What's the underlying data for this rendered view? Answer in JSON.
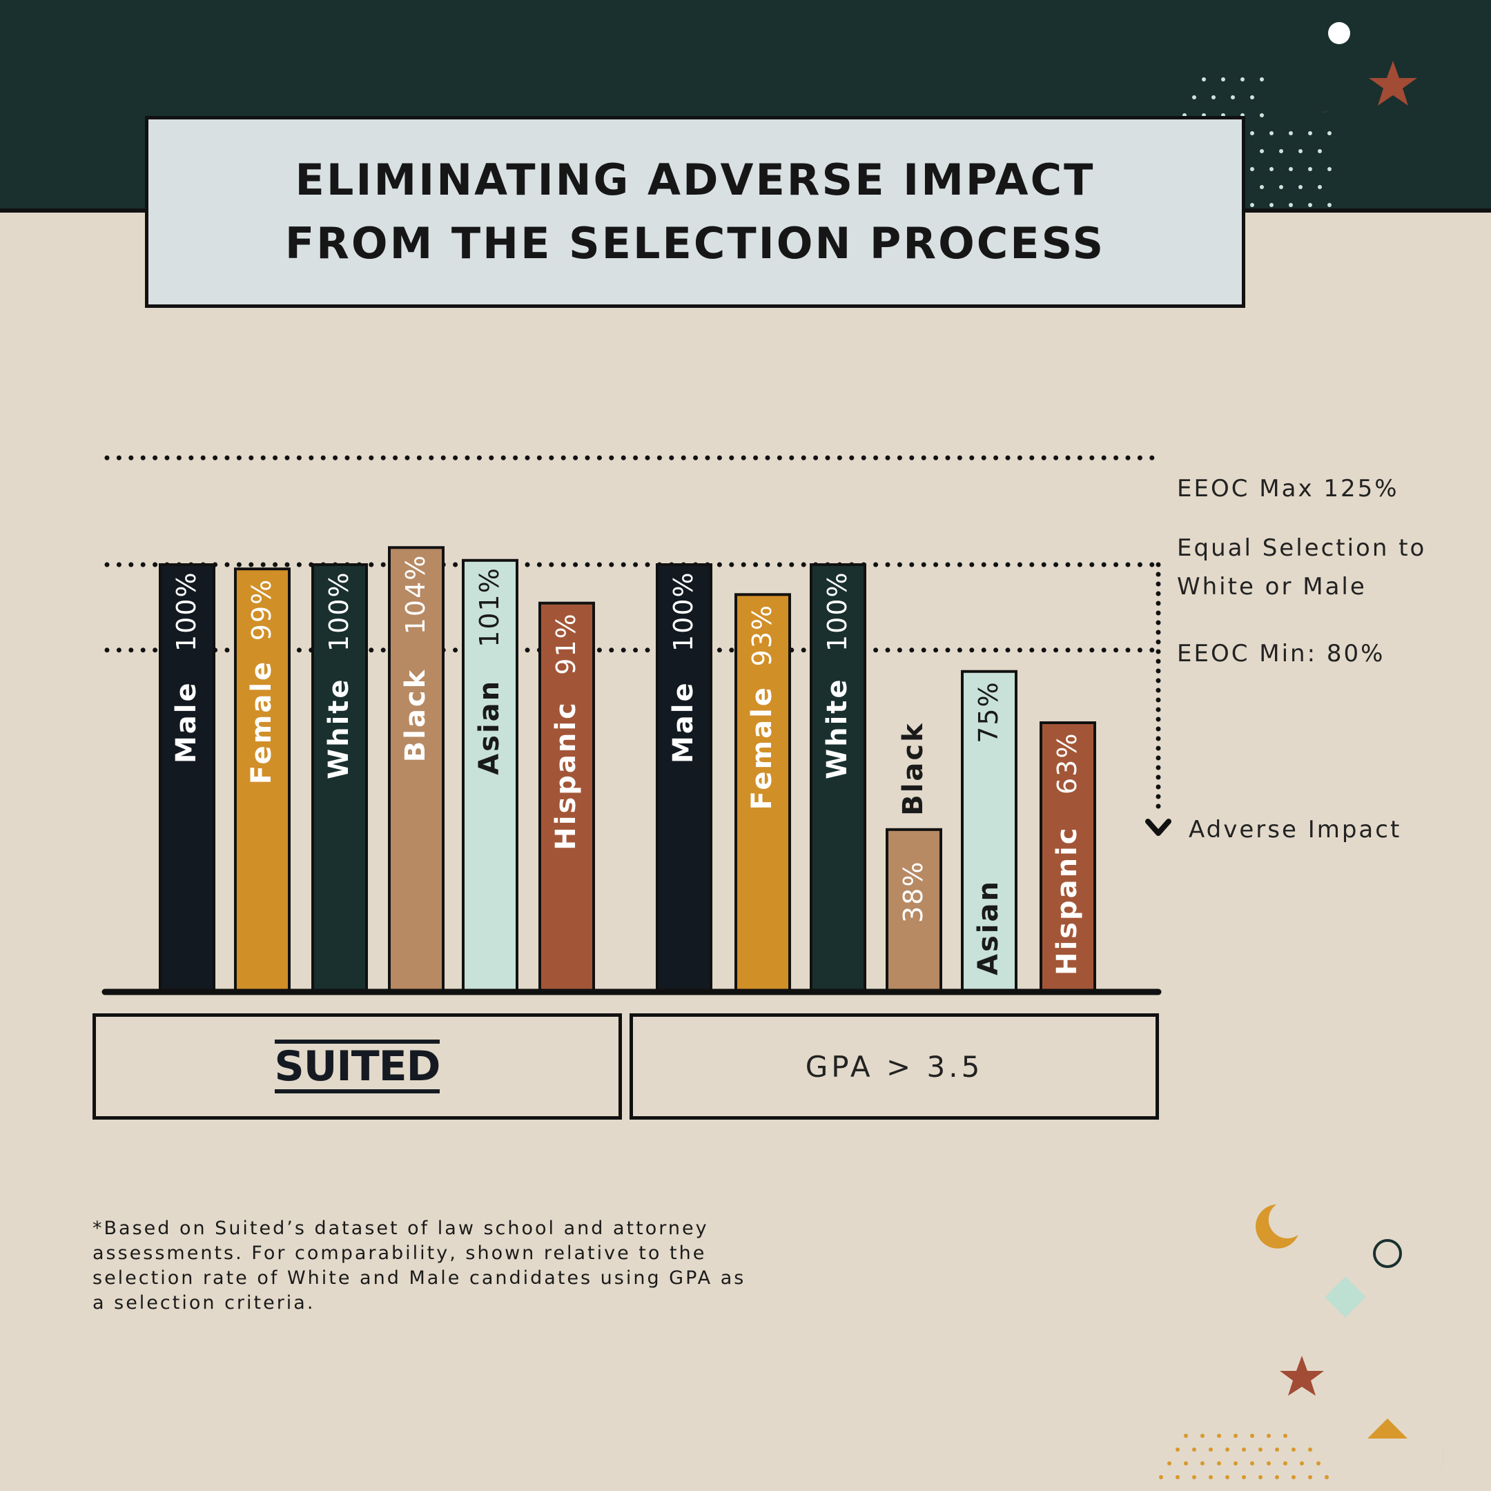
{
  "title": {
    "line1": "ELIMINATING ADVERSE IMPACT",
    "line2": "FROM THE SELECTION PROCESS"
  },
  "reference_lines": {
    "eeoc_max": "EEOC Max 125%",
    "equal_line1": "Equal Selection to",
    "equal_line2": "White or Male",
    "eeoc_min": "EEOC Min: 80%",
    "adverse": "Adverse Impact"
  },
  "groups": {
    "suited": "SUITED",
    "gpa": "GPA > 3.5"
  },
  "footnote": "*Based on Suited’s dataset of law school and attorney assessments. For comparability, shown relative to the selection rate of White and Male candidates using GPA as a selection criteria.",
  "colors": {
    "Male": "#121920",
    "Female": "#d18f28",
    "White": "#19302e",
    "Black": "#b78a64",
    "Asian": "#c8e2d9",
    "Hispanic": "#a35637"
  },
  "chart_data": {
    "type": "bar",
    "unit": "%",
    "reference_values": {
      "eeoc_max": 125,
      "equal_selection": 100,
      "eeoc_min": 80
    },
    "series": [
      {
        "name": "SUITED",
        "categories": [
          "Male",
          "Female",
          "White",
          "Black",
          "Asian",
          "Hispanic"
        ],
        "values": [
          100,
          99,
          100,
          104,
          101,
          91
        ],
        "value_labels": [
          "100%",
          "99%",
          "100%",
          "104%",
          "101%",
          "91%"
        ]
      },
      {
        "name": "GPA > 3.5",
        "categories": [
          "Male",
          "Female",
          "White",
          "Black",
          "Asian",
          "Hispanic"
        ],
        "values": [
          100,
          93,
          100,
          38,
          75,
          63
        ],
        "value_labels": [
          "100%",
          "93%",
          "100%",
          "38%",
          "75%",
          "63%"
        ]
      }
    ]
  }
}
